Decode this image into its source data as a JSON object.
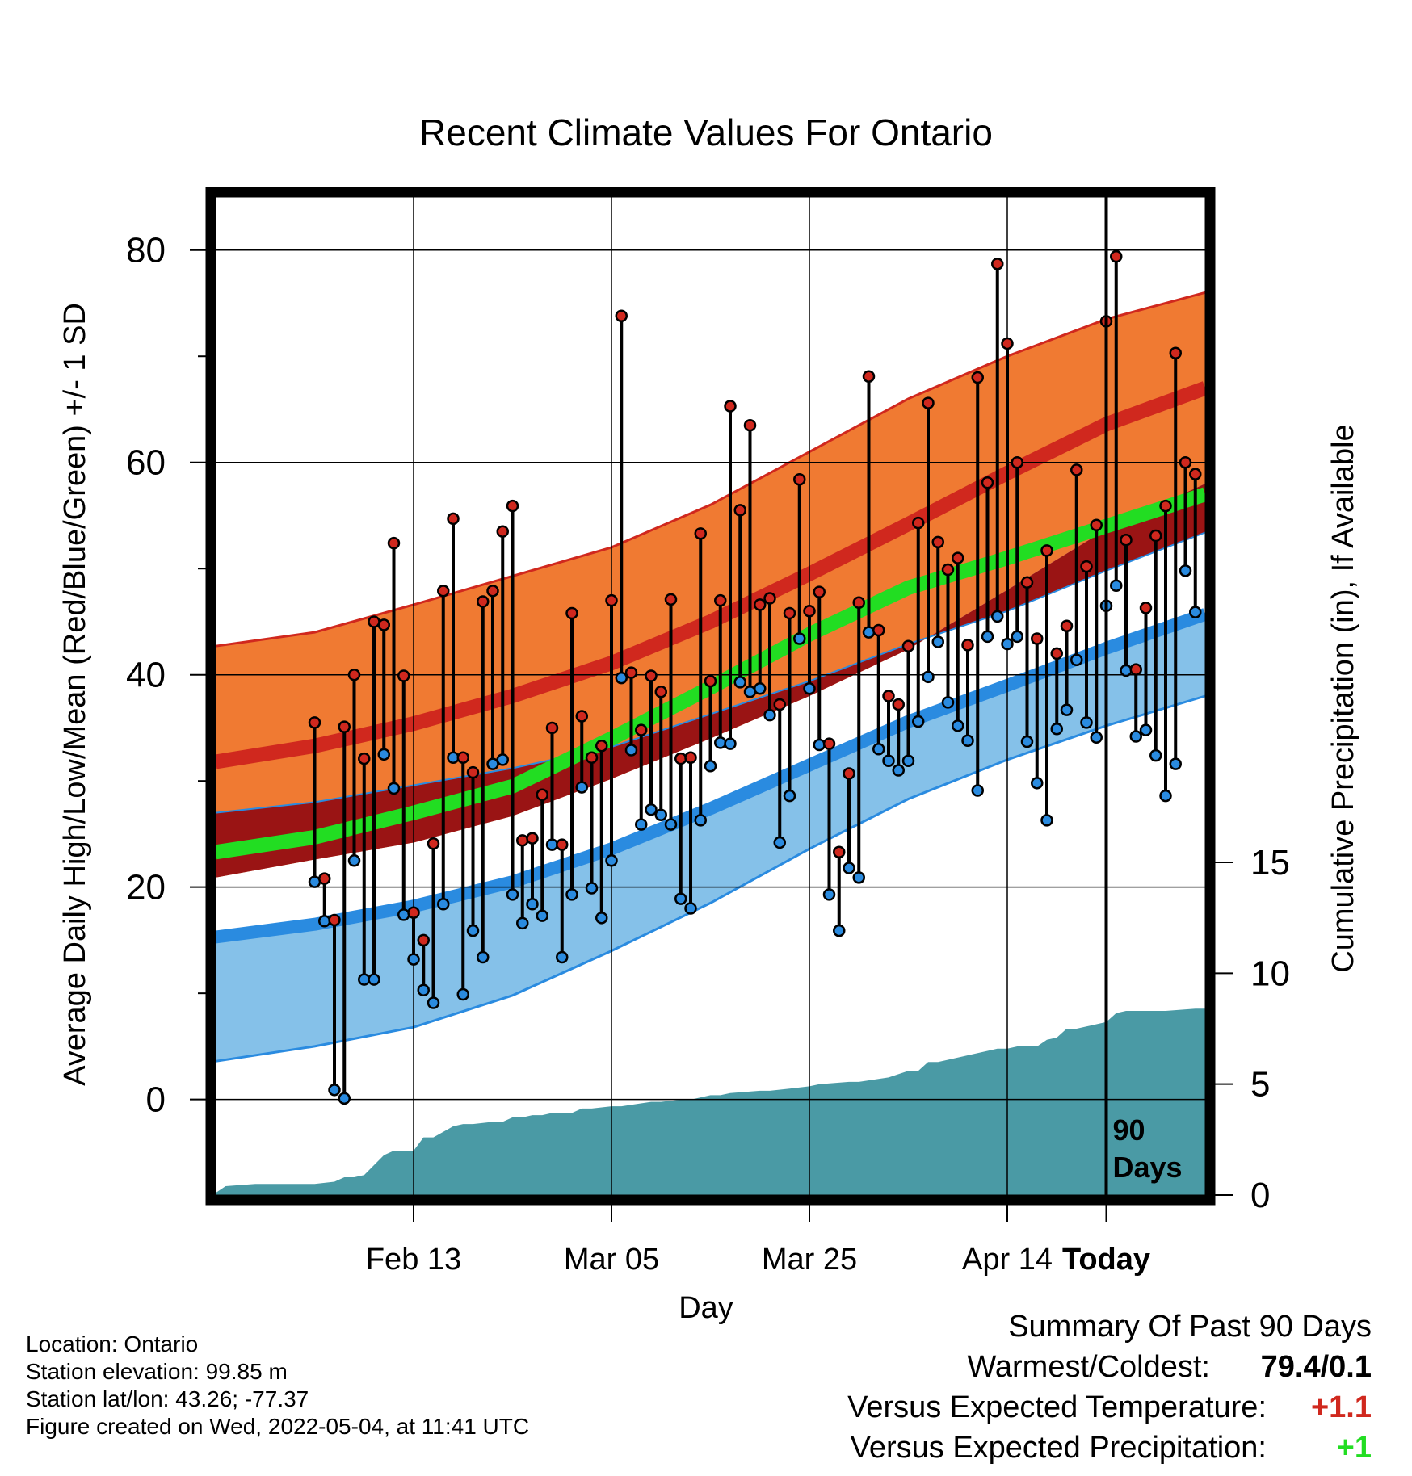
{
  "chart_data": {
    "type": "line",
    "title": "Recent Climate Values For Ontario",
    "xlabel": "Day",
    "ylabel": "Average Daily High/Low/Mean (Red/Blue/Green) +/- 1 SD",
    "y2label": "Cumulative Precipitation (in), If Available",
    "x_ticks": [
      "Feb 13",
      "Mar 05",
      "Mar 25",
      "Apr 14",
      "Today"
    ],
    "y_ticks": [
      0,
      20,
      40,
      60,
      80
    ],
    "y2_ticks": [
      0,
      5,
      10,
      15
    ],
    "ylim": [
      -9,
      85
    ],
    "y2lim": [
      0,
      45
    ],
    "xlim": [
      -10,
      90
    ],
    "grid": true,
    "today_marker": {
      "x": 80,
      "label_line1": "90",
      "label_line2": "Days"
    },
    "normals": {
      "x": [
        -10,
        0,
        10,
        20,
        30,
        40,
        50,
        60,
        70,
        80,
        90
      ],
      "high_mean": [
        31.8,
        33.3,
        35.4,
        38.0,
        41.1,
        45.0,
        49.5,
        54.2,
        59.0,
        63.6,
        67.0
      ],
      "high_upper": [
        42.7,
        44.0,
        46.6,
        49.3,
        52.0,
        56.0,
        61.0,
        66.0,
        70.0,
        73.5,
        76.0
      ],
      "low_mean": [
        15.3,
        16.5,
        18.2,
        20.5,
        23.6,
        27.4,
        31.5,
        35.6,
        39.0,
        42.5,
        45.7
      ],
      "low_lower": [
        3.6,
        5.0,
        6.8,
        9.8,
        14.0,
        18.5,
        23.6,
        28.3,
        32.0,
        35.2,
        38.0
      ],
      "mean_mean": [
        23.3,
        24.7,
        27.0,
        29.5,
        34.0,
        38.8,
        43.8,
        48.2,
        51.0,
        54.0,
        57.0
      ]
    },
    "series": [
      {
        "name": "High",
        "color": "#d0281e",
        "x": [
          0,
          1,
          2,
          3,
          4,
          5,
          6,
          7,
          8,
          9,
          10,
          11,
          12,
          13,
          14,
          15,
          16,
          17,
          18,
          19,
          20,
          21,
          22,
          23,
          24,
          25,
          26,
          27,
          28,
          29,
          30,
          31,
          32,
          33,
          34,
          35,
          36,
          37,
          38,
          39,
          40,
          41,
          42,
          43,
          44,
          45,
          46,
          47,
          48,
          49,
          50,
          51,
          52,
          53,
          54,
          55,
          56,
          57,
          58,
          59,
          60,
          61,
          62,
          63,
          64,
          65,
          66,
          67,
          68,
          69,
          70,
          71,
          72,
          73,
          74,
          75,
          76,
          77,
          78,
          79,
          80,
          81,
          82,
          83,
          84,
          85,
          86,
          87,
          88,
          89
        ],
        "values": [
          35.5,
          20.8,
          16.9,
          35.1,
          40.0,
          32.1,
          45.0,
          44.7,
          52.4,
          39.9,
          17.6,
          15.0,
          24.1,
          47.9,
          54.7,
          32.2,
          30.8,
          46.9,
          47.9,
          53.5,
          55.9,
          24.4,
          24.6,
          28.7,
          35.0,
          24.0,
          45.8,
          36.1,
          32.2,
          33.3,
          47.0,
          73.8,
          40.2,
          34.8,
          39.9,
          38.4,
          47.1,
          32.1,
          32.2,
          53.3,
          39.4,
          47.0,
          65.3,
          55.5,
          63.5,
          46.6,
          47.2,
          37.2,
          45.8,
          58.4,
          46.0,
          47.8,
          33.5,
          23.3,
          30.7,
          46.8,
          68.1,
          44.2,
          38.0,
          37.2,
          42.7,
          54.3,
          65.6,
          52.5,
          49.9,
          51.0,
          42.8,
          68.0,
          58.1,
          78.7,
          71.2,
          60.0,
          48.7,
          43.4,
          51.7,
          42.0,
          44.6,
          59.3,
          50.2,
          54.1,
          73.3,
          79.4,
          52.7,
          40.5,
          46.3,
          53.1,
          55.9,
          70.3,
          60.0,
          58.9
        ]
      },
      {
        "name": "Low",
        "color": "#2a8be0",
        "x": [
          0,
          1,
          2,
          3,
          4,
          5,
          6,
          7,
          8,
          9,
          10,
          11,
          12,
          13,
          14,
          15,
          16,
          17,
          18,
          19,
          20,
          21,
          22,
          23,
          24,
          25,
          26,
          27,
          28,
          29,
          30,
          31,
          32,
          33,
          34,
          35,
          36,
          37,
          38,
          39,
          40,
          41,
          42,
          43,
          44,
          45,
          46,
          47,
          48,
          49,
          50,
          51,
          52,
          53,
          54,
          55,
          56,
          57,
          58,
          59,
          60,
          61,
          62,
          63,
          64,
          65,
          66,
          67,
          68,
          69,
          70,
          71,
          72,
          73,
          74,
          75,
          76,
          77,
          78,
          79,
          80,
          81,
          82,
          83,
          84,
          85,
          86,
          87,
          88,
          89
        ],
        "values": [
          20.5,
          16.8,
          0.9,
          0.1,
          22.5,
          11.3,
          11.3,
          32.5,
          29.3,
          17.4,
          13.2,
          10.3,
          9.1,
          18.4,
          32.2,
          9.9,
          15.9,
          13.4,
          31.6,
          32.0,
          19.3,
          16.6,
          18.4,
          17.3,
          24.0,
          13.4,
          19.3,
          29.4,
          19.9,
          17.1,
          22.5,
          39.7,
          32.9,
          25.9,
          27.3,
          26.8,
          25.9,
          18.9,
          18.0,
          26.3,
          31.4,
          33.6,
          33.5,
          39.3,
          38.4,
          38.7,
          36.2,
          24.2,
          28.6,
          43.4,
          38.7,
          33.4,
          19.3,
          15.9,
          21.8,
          20.9,
          44.0,
          33.0,
          31.9,
          31.0,
          31.9,
          35.6,
          39.8,
          43.1,
          37.4,
          35.2,
          33.8,
          29.1,
          43.6,
          45.5,
          42.9,
          43.6,
          33.7,
          29.8,
          26.3,
          34.9,
          36.7,
          41.4,
          35.5,
          34.1,
          46.5,
          48.4,
          40.4,
          34.2,
          34.8,
          32.4,
          28.6,
          31.6,
          49.8,
          45.9
        ]
      }
    ],
    "precip": {
      "name": "Cumulative Precipitation",
      "color": "#4a9aa5",
      "x": [
        -10,
        -9,
        -6,
        -3,
        0,
        2,
        3,
        4,
        5,
        7,
        8,
        10,
        11,
        12,
        14,
        15,
        16,
        18,
        19,
        20,
        21,
        22,
        23,
        24,
        26,
        27,
        28,
        30,
        31,
        34,
        35,
        37,
        38,
        40,
        41,
        42,
        45,
        46,
        48,
        50,
        51,
        54,
        55,
        58,
        60,
        61,
        62,
        63,
        66,
        67,
        69,
        70,
        71,
        73,
        74,
        75,
        76,
        77,
        78,
        80,
        81,
        82,
        84,
        86,
        89,
        90
      ],
      "values": [
        0.1,
        0.4,
        0.5,
        0.5,
        0.5,
        0.6,
        0.8,
        0.8,
        0.9,
        1.8,
        2.0,
        2.0,
        2.6,
        2.6,
        3.1,
        3.2,
        3.2,
        3.3,
        3.3,
        3.5,
        3.5,
        3.6,
        3.6,
        3.7,
        3.7,
        3.9,
        3.9,
        4.0,
        4.0,
        4.2,
        4.2,
        4.3,
        4.3,
        4.5,
        4.5,
        4.6,
        4.7,
        4.7,
        4.8,
        4.9,
        5.0,
        5.1,
        5.1,
        5.3,
        5.6,
        5.6,
        6.0,
        6.0,
        6.3,
        6.4,
        6.6,
        6.6,
        6.7,
        6.7,
        7.0,
        7.1,
        7.5,
        7.5,
        7.6,
        7.8,
        8.2,
        8.3,
        8.3,
        8.3,
        8.4,
        8.4
      ]
    }
  },
  "footer": {
    "location": "Location: Ontario",
    "elevation": "Station elevation: 99.85 m",
    "latlon": "Station lat/lon: 43.26; -77.37",
    "created": "Figure created on Wed, 2022-05-04, at 11:41 UTC"
  },
  "summary": {
    "heading": "Summary Of Past 90 Days",
    "warmest_coldest_label": "Warmest/Coldest:",
    "warmest_coldest_value": "79.4/0.1",
    "temp_label": "Versus Expected Temperature:",
    "temp_value": "+1.1",
    "temp_color": "#d0281e",
    "precip_label": "Versus Expected Precipitation:",
    "precip_value": "+1",
    "precip_color": "#22dd22"
  }
}
